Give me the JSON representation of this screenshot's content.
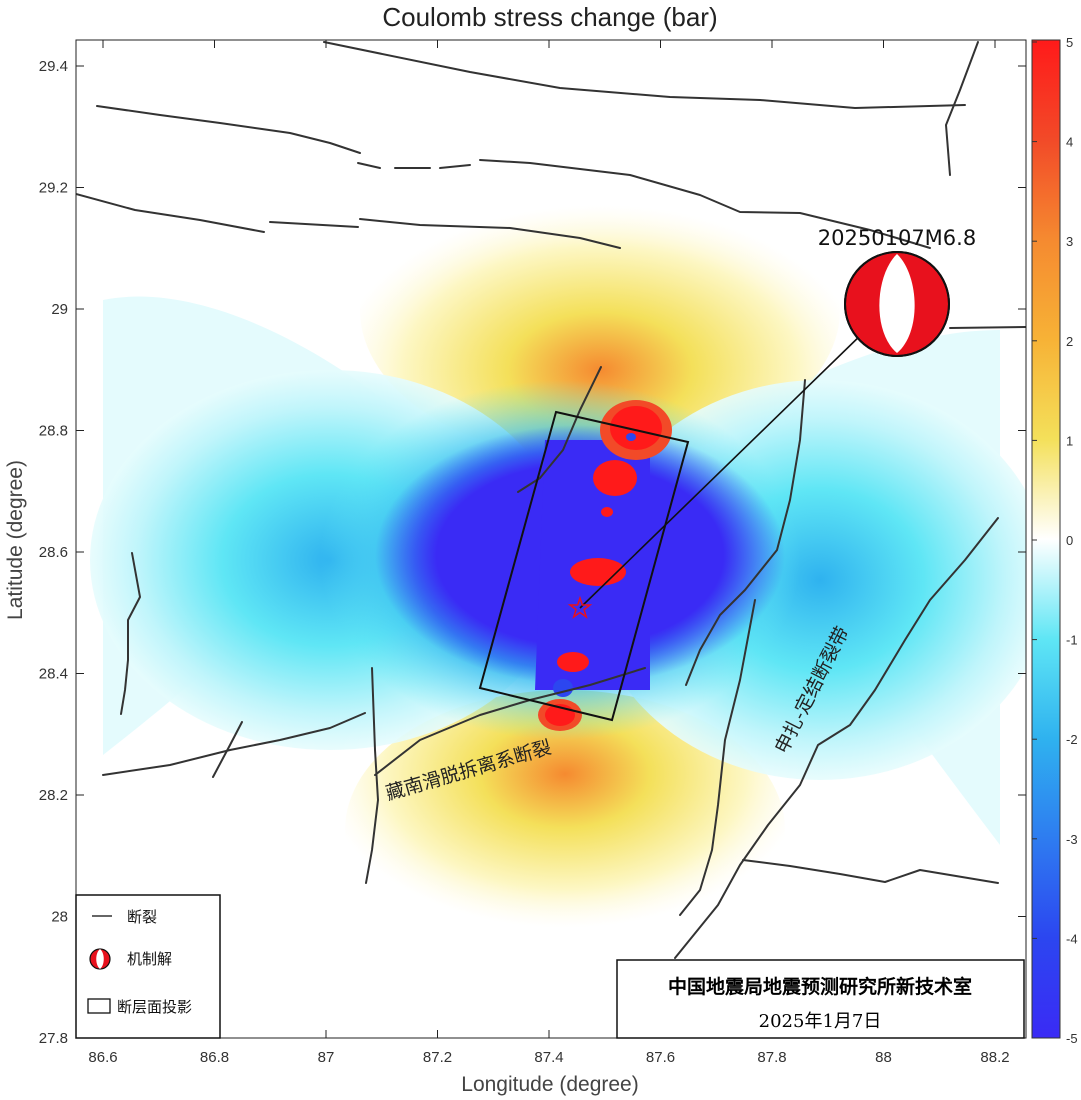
{
  "title": "Coulomb stress change (bar)",
  "xlabel": "Longitude (degree)",
  "ylabel": "Latitude  (degree)",
  "x_ticks": [
    "86.6",
    "86.8",
    "87",
    "87.2",
    "87.4",
    "87.6",
    "87.8",
    "88",
    "88.2"
  ],
  "y_ticks": [
    "29.4",
    "29.2",
    "29",
    "28.8",
    "28.6",
    "28.4",
    "28.2",
    "28",
    "27.8"
  ],
  "colorbar": {
    "ticks": [
      "5",
      "4",
      "3",
      "2",
      "1",
      "0",
      "-1",
      "-2",
      "-3",
      "-4",
      "-5"
    ],
    "colors": [
      "#ff1a1a",
      "#f24a28",
      "#f58a30",
      "#f7b236",
      "#f4e05a",
      "#ffffff",
      "#5fe6f5",
      "#2fb2ef",
      "#2e7cf0",
      "#2c46f0",
      "#3a2bf5"
    ]
  },
  "event": {
    "label": "20250107M6.8",
    "epicenter": {
      "lon": 87.45,
      "lat": 28.5
    },
    "mechanism_colors": [
      "#e8111d",
      "#ffffff"
    ]
  },
  "faults": {
    "zangnan_label": "藏南滑脱拆离系断裂",
    "shenzha_label": "申扎-定结断裂带"
  },
  "legend": {
    "fault": "断裂",
    "mechanism": "机制解",
    "projection": "断层面投影"
  },
  "credit": {
    "org": "中国地震局地震预测研究所新技术室",
    "date": "2025年1月7日"
  }
}
